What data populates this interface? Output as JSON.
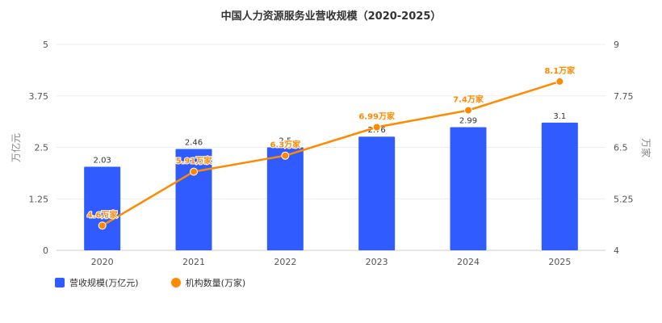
{
  "chart_data": {
    "type": "bar+line",
    "title": "中国人力资源服务业营收规模（2020-2025）",
    "categories": [
      "2020",
      "2021",
      "2022",
      "2023",
      "2024",
      "2025"
    ],
    "series": [
      {
        "name": "营收规模(万亿元)",
        "type": "bar",
        "axis": "left",
        "values": [
          2.03,
          2.46,
          2.5,
          2.76,
          2.99,
          3.1
        ],
        "labels": [
          "2.03",
          "2.46",
          "2.5",
          "2.76",
          "2.99",
          "3.1"
        ],
        "color": "#2f5bff"
      },
      {
        "name": "机构数量(万家)",
        "type": "line",
        "axis": "right",
        "values": [
          4.6,
          5.91,
          6.3,
          6.99,
          7.4,
          8.1
        ],
        "labels": [
          "4.6万家",
          "5.91万家",
          "6.3万家",
          "6.99万家",
          "7.4万家",
          "8.1万家"
        ],
        "color": "#ff8a00"
      }
    ],
    "y_left": {
      "label": "万亿元",
      "min": 0,
      "max": 5,
      "ticks": [
        "0",
        "1.25",
        "2.5",
        "3.75",
        "5"
      ]
    },
    "y_right": {
      "label": "万家",
      "min": 4,
      "max": 9,
      "ticks": [
        "4",
        "5.25",
        "6.5",
        "7.75",
        "9"
      ]
    },
    "grid": true,
    "legend_position": "bottom-left"
  }
}
